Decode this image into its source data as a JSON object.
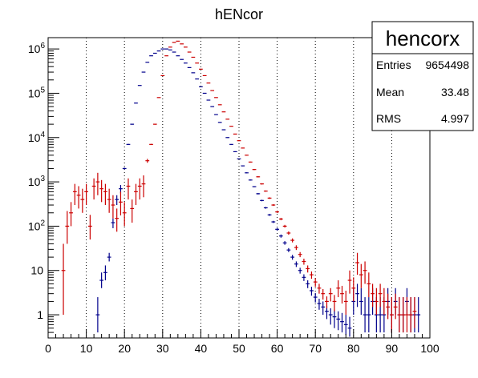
{
  "chart_data": {
    "type": "scatter",
    "title": "hENcor",
    "xlabel": "",
    "ylabel": "",
    "xlim": [
      0,
      100
    ],
    "ylim": [
      0.3,
      1800000
    ],
    "yscale": "log",
    "grid": "x-dotted",
    "x_ticks": [
      "0",
      "10",
      "20",
      "30",
      "40",
      "50",
      "60",
      "70",
      "80",
      "90",
      "100"
    ],
    "y_ticks": [
      {
        "value": 1,
        "base": "1",
        "exp": ""
      },
      {
        "value": 10,
        "base": "10",
        "exp": ""
      },
      {
        "value": 100,
        "base": "10",
        "exp": "2"
      },
      {
        "value": 1000,
        "base": "10",
        "exp": "3"
      },
      {
        "value": 10000,
        "base": "10",
        "exp": "4"
      },
      {
        "value": 100000,
        "base": "10",
        "exp": "5"
      },
      {
        "value": 1000000,
        "base": "10",
        "exp": "6"
      }
    ],
    "stats_box": {
      "name": "hencorx",
      "rows": [
        {
          "label": "Entries",
          "value": "9654498"
        },
        {
          "label": "Mean",
          "value": "33.48"
        },
        {
          "label": "RMS",
          "value": "4.997"
        }
      ]
    },
    "series": [
      {
        "color": "#00008b",
        "points": [
          [
            13,
            1,
            0.4,
            2.5
          ],
          [
            14,
            6,
            4,
            9
          ],
          [
            15,
            9,
            6,
            13
          ],
          [
            16,
            20,
            16,
            25
          ],
          [
            17,
            120,
            90,
            150
          ],
          [
            18,
            400,
            300,
            500
          ],
          [
            19,
            700,
            550,
            850
          ],
          [
            20,
            2000,
            1900,
            2100
          ],
          [
            21,
            7000,
            6800,
            7200
          ],
          [
            22,
            20000,
            19500,
            20500
          ],
          [
            23,
            60000,
            59000,
            61000
          ],
          [
            24,
            150000,
            149000,
            151000
          ],
          [
            25,
            300000,
            298000,
            302000
          ],
          [
            26,
            500000,
            497000,
            503000
          ],
          [
            27,
            700000,
            697000,
            703000
          ],
          [
            28,
            800000,
            797000,
            803000
          ],
          [
            29,
            900000,
            896000,
            904000
          ],
          [
            30,
            1000000,
            996000,
            1004000
          ],
          [
            31,
            1000000,
            996000,
            1004000
          ],
          [
            32,
            950000,
            946000,
            954000
          ],
          [
            33,
            850000,
            846000,
            854000
          ],
          [
            34,
            700000,
            697000,
            703000
          ],
          [
            35,
            580000,
            577000,
            583000
          ],
          [
            36,
            480000,
            477000,
            483000
          ],
          [
            37,
            380000,
            377000,
            383000
          ],
          [
            38,
            290000,
            288000,
            292000
          ],
          [
            39,
            210000,
            208000,
            212000
          ],
          [
            40,
            140000,
            139000,
            141000
          ],
          [
            41,
            100000,
            99000,
            101000
          ],
          [
            42,
            70000,
            69500,
            70500
          ],
          [
            43,
            50000,
            49500,
            50500
          ],
          [
            44,
            33000,
            32600,
            33400
          ],
          [
            45,
            22000,
            21700,
            22300
          ],
          [
            46,
            15000,
            14800,
            15200
          ],
          [
            47,
            10000,
            9850,
            10150
          ],
          [
            48,
            7000,
            6880,
            7120
          ],
          [
            49,
            4800,
            4700,
            4900
          ],
          [
            50,
            3300,
            3230,
            3370
          ],
          [
            51,
            2300,
            2250,
            2350
          ],
          [
            52,
            1600,
            1560,
            1640
          ],
          [
            53,
            1100,
            1070,
            1130
          ],
          [
            54,
            780,
            760,
            800
          ],
          [
            55,
            540,
            520,
            560
          ],
          [
            56,
            380,
            365,
            395
          ],
          [
            57,
            260,
            248,
            272
          ],
          [
            58,
            180,
            171,
            189
          ],
          [
            59,
            125,
            118,
            132
          ],
          [
            60,
            85,
            79,
            91
          ],
          [
            61,
            60,
            55,
            65
          ],
          [
            62,
            42,
            38,
            46
          ],
          [
            63,
            29,
            26,
            32
          ],
          [
            64,
            20,
            17.5,
            22.5
          ],
          [
            65,
            14,
            12,
            16
          ],
          [
            66,
            10,
            8.5,
            11.5
          ],
          [
            67,
            7,
            5.8,
            8.2
          ],
          [
            68,
            5,
            4,
            6
          ],
          [
            69,
            3.5,
            2.7,
            4.3
          ],
          [
            70,
            2.5,
            1.9,
            3.1
          ],
          [
            71,
            1.8,
            1.3,
            2.3
          ],
          [
            72,
            1.5,
            1,
            2
          ],
          [
            73,
            1.2,
            0.8,
            1.6
          ],
          [
            74,
            1,
            0.6,
            1.4
          ],
          [
            75,
            0.9,
            0.5,
            1.3
          ],
          [
            76,
            0.8,
            0.45,
            1.2
          ],
          [
            77,
            0.7,
            0.4,
            1.1
          ],
          [
            78,
            0.6,
            0.35,
            1
          ],
          [
            79,
            0.5,
            0.32,
            0.9
          ],
          [
            80,
            2,
            1,
            4
          ],
          [
            81,
            3,
            1.5,
            5
          ],
          [
            82,
            2,
            1,
            4
          ],
          [
            83,
            1,
            0.4,
            2.5
          ],
          [
            84,
            1,
            0.4,
            2.5
          ],
          [
            85,
            2,
            1,
            4
          ],
          [
            86,
            1,
            0.4,
            2.5
          ],
          [
            87,
            1,
            0.4,
            2.5
          ],
          [
            88,
            1,
            0.4,
            2.5
          ],
          [
            89,
            2,
            1,
            4
          ],
          [
            90,
            1,
            0.4,
            2.5
          ],
          [
            91,
            2,
            1,
            4
          ],
          [
            92,
            1,
            0.4,
            2.5
          ],
          [
            93,
            1,
            0.4,
            2.5
          ],
          [
            94,
            2,
            1,
            4
          ],
          [
            95,
            1,
            0.4,
            2.5
          ],
          [
            96,
            1,
            0.4,
            2.5
          ],
          [
            97,
            1,
            0.4,
            2.5
          ]
        ]
      },
      {
        "color": "#cc0000",
        "points": [
          [
            4,
            10,
            1,
            40
          ],
          [
            5,
            100,
            40,
            220
          ],
          [
            6,
            200,
            100,
            350
          ],
          [
            7,
            600,
            300,
            900
          ],
          [
            8,
            500,
            250,
            800
          ],
          [
            9,
            400,
            200,
            700
          ],
          [
            10,
            600,
            300,
            900
          ],
          [
            11,
            100,
            50,
            180
          ],
          [
            12,
            800,
            400,
            1200
          ],
          [
            13,
            1000,
            500,
            1600
          ],
          [
            14,
            700,
            350,
            1100
          ],
          [
            15,
            600,
            300,
            900
          ],
          [
            16,
            400,
            200,
            700
          ],
          [
            17,
            300,
            150,
            500
          ],
          [
            18,
            150,
            75,
            250
          ],
          [
            19,
            350,
            175,
            600
          ],
          [
            20,
            200,
            100,
            350
          ],
          [
            21,
            800,
            400,
            1200
          ],
          [
            22,
            250,
            120,
            400
          ],
          [
            23,
            600,
            300,
            900
          ],
          [
            24,
            800,
            400,
            1200
          ],
          [
            25,
            900,
            450,
            1400
          ],
          [
            26,
            3000,
            2700,
            3300
          ],
          [
            27,
            7000,
            6800,
            7200
          ],
          [
            28,
            20000,
            19500,
            20500
          ],
          [
            29,
            80000,
            79000,
            81000
          ],
          [
            30,
            250000,
            248000,
            252000
          ],
          [
            31,
            700000,
            697000,
            703000
          ],
          [
            32,
            1100000,
            1096000,
            1104000
          ],
          [
            33,
            1400000,
            1396000,
            1404000
          ],
          [
            34,
            1500000,
            1496000,
            1504000
          ],
          [
            35,
            1300000,
            1296000,
            1304000
          ],
          [
            36,
            1100000,
            1096000,
            1104000
          ],
          [
            37,
            850000,
            846000,
            854000
          ],
          [
            38,
            650000,
            647000,
            653000
          ],
          [
            39,
            480000,
            477000,
            483000
          ],
          [
            40,
            350000,
            347000,
            353000
          ],
          [
            41,
            250000,
            248000,
            252000
          ],
          [
            42,
            170000,
            168500,
            171500
          ],
          [
            43,
            115000,
            114000,
            116000
          ],
          [
            44,
            80000,
            79300,
            80700
          ],
          [
            45,
            55000,
            54500,
            55500
          ],
          [
            46,
            38000,
            37600,
            38400
          ],
          [
            47,
            26000,
            25700,
            26300
          ],
          [
            48,
            18000,
            17800,
            18200
          ],
          [
            49,
            12000,
            11850,
            12150
          ],
          [
            50,
            8500,
            8380,
            8620
          ],
          [
            51,
            5800,
            5700,
            5900
          ],
          [
            52,
            4000,
            3930,
            4070
          ],
          [
            53,
            2800,
            2740,
            2860
          ],
          [
            54,
            1900,
            1850,
            1950
          ],
          [
            55,
            1300,
            1260,
            1340
          ],
          [
            56,
            900,
            870,
            930
          ],
          [
            57,
            620,
            600,
            640
          ],
          [
            58,
            430,
            412,
            448
          ],
          [
            59,
            300,
            286,
            314
          ],
          [
            60,
            210,
            198,
            222
          ],
          [
            61,
            145,
            136,
            154
          ],
          [
            62,
            100,
            93,
            107
          ],
          [
            63,
            70,
            64,
            76
          ],
          [
            64,
            48,
            43,
            53
          ],
          [
            65,
            33,
            29,
            37
          ],
          [
            66,
            23,
            20,
            26
          ],
          [
            67,
            16,
            13.5,
            18.5
          ],
          [
            68,
            11,
            9,
            13
          ],
          [
            69,
            8,
            6.5,
            9.5
          ],
          [
            70,
            5.5,
            4.3,
            6.7
          ],
          [
            71,
            4,
            3,
            5
          ],
          [
            72,
            3,
            2.2,
            3.8
          ],
          [
            73,
            2,
            1.4,
            2.6
          ],
          [
            74,
            3,
            2,
            4
          ],
          [
            75,
            2,
            1.2,
            2.8
          ],
          [
            76,
            4,
            2.5,
            6
          ],
          [
            77,
            3,
            1.8,
            4.5
          ],
          [
            78,
            2,
            1,
            3.5
          ],
          [
            79,
            6,
            3,
            10
          ],
          [
            80,
            4,
            2,
            7
          ],
          [
            81,
            15,
            8,
            25
          ],
          [
            82,
            8,
            4,
            14
          ],
          [
            83,
            10,
            5,
            16
          ],
          [
            84,
            5,
            2.5,
            9
          ],
          [
            85,
            3,
            1.5,
            5
          ],
          [
            86,
            2,
            1,
            4
          ],
          [
            87,
            3,
            1.5,
            5
          ],
          [
            88,
            2,
            1,
            4
          ],
          [
            89,
            1.5,
            0.8,
            3
          ],
          [
            90,
            1,
            0.4,
            2.5
          ],
          [
            91,
            1.5,
            0.8,
            3
          ],
          [
            92,
            1,
            0.4,
            2.5
          ],
          [
            93,
            1,
            0.4,
            2.5
          ],
          [
            94,
            1,
            0.4,
            2.5
          ],
          [
            95,
            1,
            0.4,
            2.5
          ],
          [
            96,
            1.2,
            0.5,
            2.5
          ]
        ]
      }
    ]
  }
}
